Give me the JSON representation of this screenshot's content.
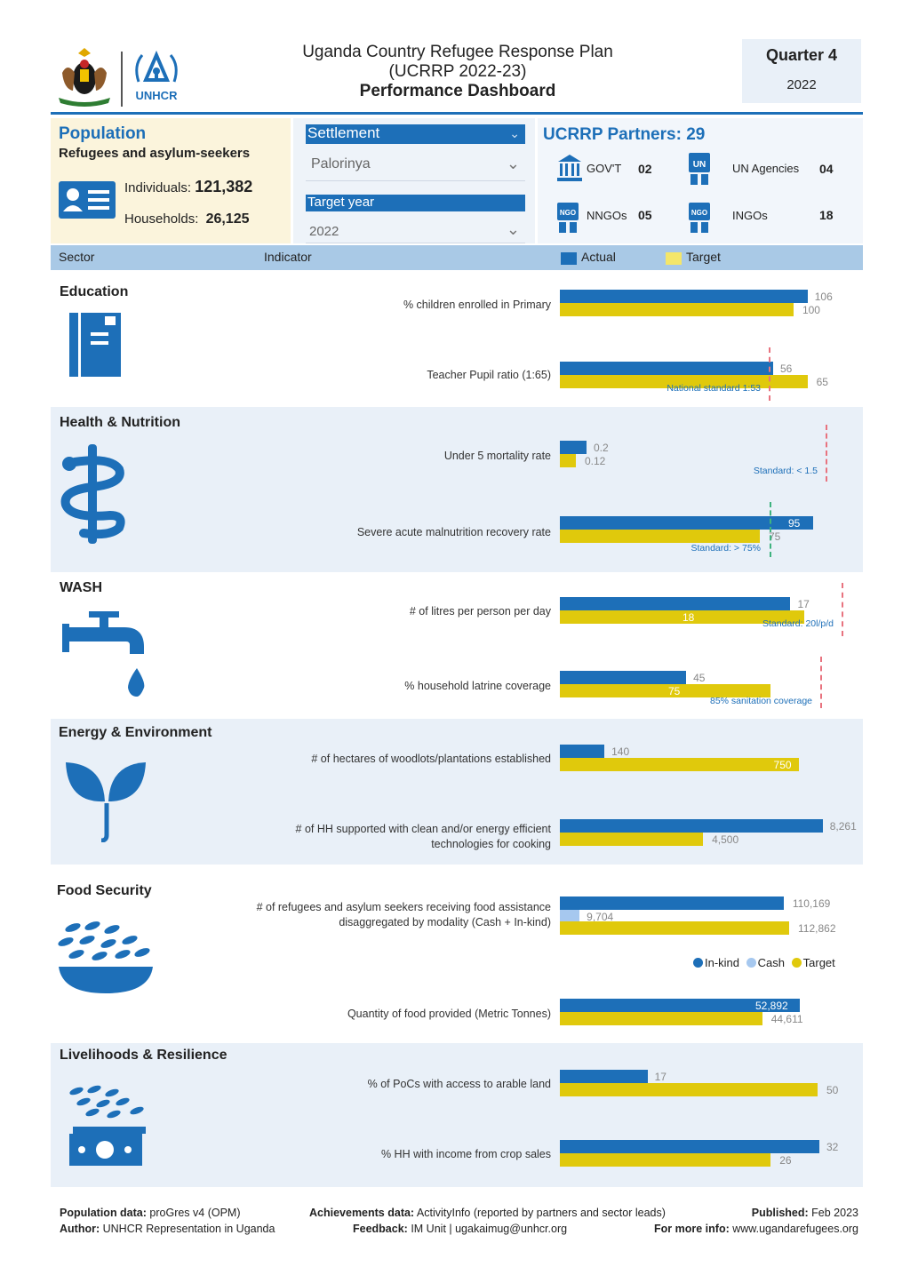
{
  "header": {
    "title_line1": "Uganda Country Refugee Response Plan",
    "title_line2": "(UCRRP 2022-23)",
    "title_line3": "Performance Dashboard",
    "unhcr_logo_text": "UNHCR",
    "quarter_label": "Quarter 4",
    "quarter_year": "2022"
  },
  "population": {
    "title": "Population",
    "subtitle": "Refugees and asylum-seekers",
    "individuals_label": "Individuals:",
    "individuals_value": "121,382",
    "households_label": "Households:",
    "households_value": "26,125"
  },
  "filters": {
    "settlement_label": "Settlement",
    "settlement_value": "Palorinya",
    "target_year_label": "Target year",
    "target_year_value": "2022"
  },
  "partners": {
    "title": "UCRRP Partners:",
    "total": "29",
    "items": [
      {
        "label": "GOV'T",
        "value": "02",
        "icon": "government-building-icon"
      },
      {
        "label": "UN Agencies",
        "value": "04",
        "icon": "un-badge-icon"
      },
      {
        "label": "NNGOs",
        "value": "05",
        "icon": "ngo-badge-icon"
      },
      {
        "label": "INGOs",
        "value": "18",
        "icon": "ngo-badge-icon"
      }
    ]
  },
  "columns": {
    "sector": "Sector",
    "indicator": "Indicator",
    "actual": "Actual",
    "target": "Target"
  },
  "colors": {
    "actual": "#1d6fb8",
    "target": "#e0c90c",
    "cash": "#a6c8ef",
    "band": "#e9f0f8",
    "standard_line": "#e8737f"
  },
  "chart_data": {
    "type": "bar",
    "orientation": "horizontal",
    "legend": [
      "Actual",
      "Target"
    ],
    "sectors": [
      {
        "name": "Education",
        "icon": "notebook-icon",
        "indicators": [
          {
            "label": "% children enrolled in Primary",
            "actual": 106,
            "actual_label": "106",
            "target": 100,
            "target_label": "100"
          },
          {
            "label": "Teacher Pupil ratio (1:65)",
            "actual": 56,
            "actual_label": "56",
            "target": 65,
            "target_label": "65",
            "standard": 53,
            "standard_label": "National standard 1:53"
          }
        ]
      },
      {
        "name": "Health & Nutrition",
        "icon": "medical-snake-icon",
        "indicators": [
          {
            "label": "Under 5 mortality rate",
            "actual": 0.2,
            "actual_label": "0.2",
            "target": 0.12,
            "target_label": "0.12",
            "standard": 1.5,
            "standard_label": "Standard: < 1.5"
          },
          {
            "label": "Severe acute malnutrition recovery rate",
            "actual": 95,
            "actual_label": "95",
            "target": 75,
            "target_label": "75",
            "standard": 75,
            "standard_label": "Standard: > 75%"
          }
        ]
      },
      {
        "name": "WASH",
        "icon": "water-tap-icon",
        "indicators": [
          {
            "label": "# of litres per person per day",
            "actual": 17,
            "actual_label": "17",
            "target": 18,
            "target_label": "18",
            "standard": 20,
            "standard_label": "Standard: 20l/p/d"
          },
          {
            "label": "% household latrine coverage",
            "actual": 45,
            "actual_label": "45",
            "target": 75,
            "target_label": "75",
            "standard": 85,
            "standard_label": "85% sanitation coverage"
          }
        ]
      },
      {
        "name": "Energy & Environment",
        "icon": "seedling-icon",
        "indicators": [
          {
            "label": "# of hectares of woodlots/plantations established",
            "actual": 140,
            "actual_label": "140",
            "target": 750,
            "target_label": "750"
          },
          {
            "label": "# of HH supported with clean and/or energy efficient technologies for cooking",
            "actual": 8261,
            "actual_label": "8,261",
            "target": 4500,
            "target_label": "4,500"
          }
        ]
      },
      {
        "name": "Food Security",
        "icon": "grain-bowl-icon",
        "indicators": [
          {
            "label": "# of refugees and asylum seekers receiving food assistance disaggregated by modality (Cash + In-kind)",
            "inkind": 110169,
            "inkind_label": "110,169",
            "cash": 9704,
            "cash_label": "9,704",
            "target": 112862,
            "target_label": "112,862",
            "legend": [
              "In-kind",
              "Cash",
              "Target"
            ]
          },
          {
            "label": "Quantity of food provided (Metric Tonnes)",
            "actual": 52892,
            "actual_label": "52,892",
            "target": 44611,
            "target_label": "44,611"
          }
        ]
      },
      {
        "name": "Livelihoods & Resilience",
        "icon": "money-grain-icon",
        "indicators": [
          {
            "label": "% of PoCs with access to arable land",
            "actual": 17,
            "actual_label": "17",
            "target": 50,
            "target_label": "50"
          },
          {
            "label": "% HH with income from crop sales",
            "actual": 32,
            "actual_label": "32",
            "target": 26,
            "target_label": "26"
          }
        ]
      }
    ]
  },
  "footer": {
    "pop_data_label": "Population data:",
    "pop_data_value": "proGres v4 (OPM)",
    "author_label": "Author:",
    "author_value": "UNHCR Representation in Uganda",
    "achievements_label": "Achievements data:",
    "achievements_value": "ActivityInfo (reported by partners and sector leads)",
    "feedback_label": "Feedback:",
    "feedback_value": "IM Unit | ugakaimug@unhcr.org",
    "published_label": "Published:",
    "published_value": "Feb 2023",
    "moreinfo_label": "For more info:",
    "moreinfo_value": "www.ugandarefugees.org"
  }
}
